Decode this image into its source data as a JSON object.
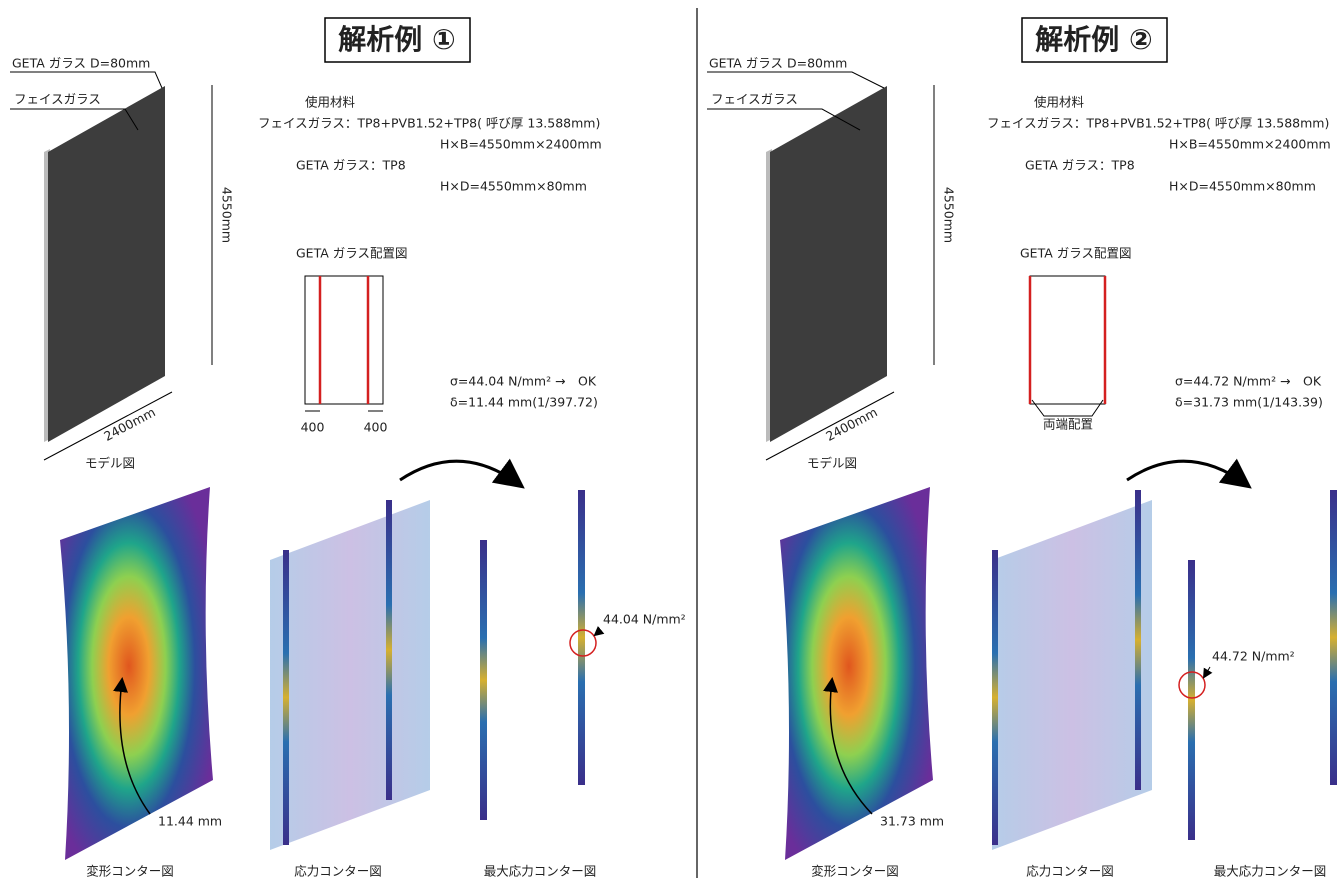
{
  "panels": [
    {
      "title": "解析例 ①",
      "model": {
        "geta_label": "GETA ガラス D=80mm",
        "face_label": "フェイスガラス",
        "height": "4550mm",
        "width": "2400mm",
        "caption": "モデル図"
      },
      "materials": {
        "heading": "使用材料",
        "lines": [
          "フェイスガラス：TP8+PVB1.52+TP8( 呼び厚 13.588mm)",
          "H×B=4550mm×2400mm",
          "GETA ガラス：TP8",
          "H×D=4550mm×80mm"
        ]
      },
      "layout": {
        "heading": "GETA ガラス配置図",
        "labels": [
          "400",
          "400"
        ]
      },
      "results": [
        "σ=44.04 N/mm² →　OK",
        "δ=11.44 mm(1/397.72)"
      ],
      "deformation_value": "11.44 mm",
      "stress_value": "44.04 N/mm²",
      "captions": [
        "変形コンター図",
        "応力コンター図",
        "最大応力コンター図"
      ]
    },
    {
      "title": "解析例 ②",
      "model": {
        "geta_label": "GETA ガラス D=80mm",
        "face_label": "フェイスガラス",
        "height": "4550mm",
        "width": "2400mm",
        "caption": "モデル図"
      },
      "materials": {
        "heading": "使用材料",
        "lines": [
          "フェイスガラス：TP8+PVB1.52+TP8( 呼び厚 13.588mm)",
          "H×B=4550mm×2400mm",
          "GETA ガラス：TP8",
          "H×D=4550mm×80mm"
        ]
      },
      "layout": {
        "heading": "GETA ガラス配置図",
        "labels": [
          "両端配置"
        ]
      },
      "results": [
        "σ=44.72 N/mm² →　OK",
        "δ=31.73 mm(1/143.39)"
      ],
      "deformation_value": "31.73 mm",
      "stress_value": "44.72 N/mm²",
      "captions": [
        "変形コンター図",
        "応力コンター図",
        "最大応力コンター図"
      ]
    }
  ]
}
